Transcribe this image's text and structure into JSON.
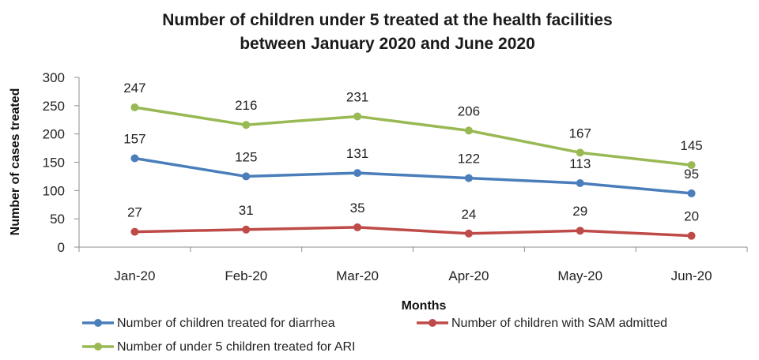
{
  "chart_data": {
    "type": "line",
    "title_line1": "Number of children under 5 treated at the health facilities",
    "title_line2": "between January 2020 and June 2020",
    "xlabel": "Months",
    "ylabel": "Number of cases treated",
    "categories": [
      "Jan-20",
      "Feb-20",
      "Mar-20",
      "Apr-20",
      "May-20",
      "Jun-20"
    ],
    "ylim": [
      0,
      300
    ],
    "yticks": [
      0,
      50,
      100,
      150,
      200,
      250,
      300
    ],
    "grid": false,
    "legend_position": "bottom",
    "series": [
      {
        "name": "Number of children treated for diarrhea",
        "color": "#4a7ebb",
        "values": [
          157,
          125,
          131,
          122,
          113,
          95
        ]
      },
      {
        "name": "Number of children with SAM admitted",
        "color": "#be4b48",
        "values": [
          27,
          31,
          35,
          24,
          29,
          20
        ]
      },
      {
        "name": "Number of under 5 children treated for ARI",
        "color": "#98b954",
        "values": [
          247,
          216,
          231,
          206,
          167,
          145
        ]
      }
    ]
  }
}
